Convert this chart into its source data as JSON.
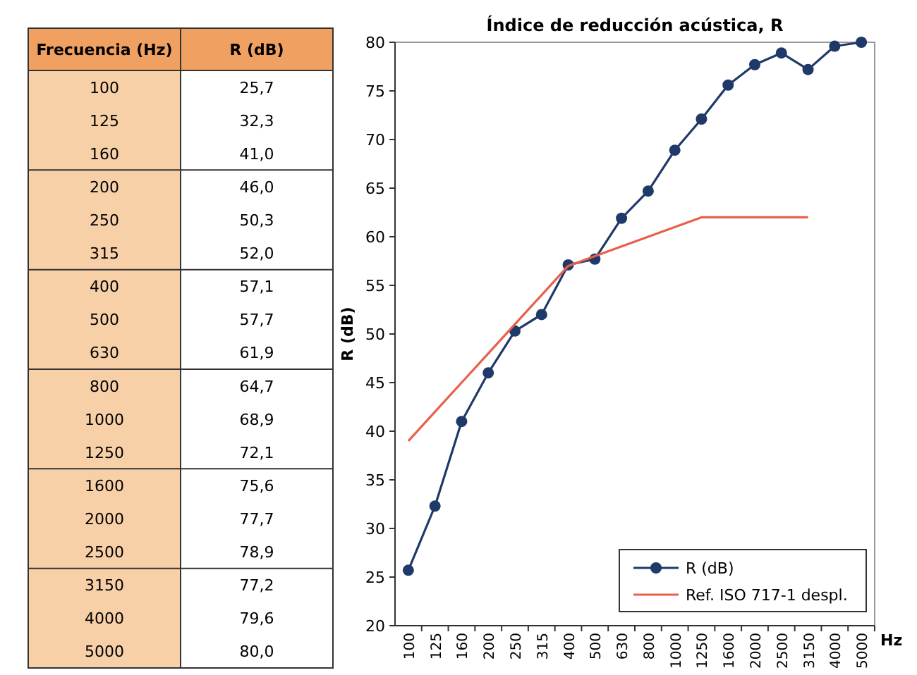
{
  "chart_data": {
    "type": "line",
    "title": "Índice de reducción acústica, R",
    "xlabel": "Hz",
    "ylabel": "R (dB)",
    "annotations": [
      "Frecuencia (Hz)",
      "R (dB)"
    ],
    "categories": [
      "100",
      "125",
      "160",
      "200",
      "250",
      "315",
      "400",
      "500",
      "630",
      "800",
      "1000",
      "1250",
      "1600",
      "2000",
      "2500",
      "3150",
      "4000",
      "5000"
    ],
    "series": [
      {
        "name": "R (dB)",
        "color": "#1f3a68",
        "marker": "circle",
        "values": [
          25.7,
          32.3,
          41.0,
          46.0,
          50.3,
          52.0,
          57.1,
          57.7,
          61.9,
          64.7,
          68.9,
          72.1,
          75.6,
          77.7,
          78.9,
          77.2,
          79.6,
          80.0
        ],
        "value_labels": [
          "25,7",
          "32,3",
          "41,0",
          "46,0",
          "50,3",
          "52,0",
          "57,1",
          "57,7",
          "61,9",
          "64,7",
          "68,9",
          "72,1",
          "75,6",
          "77,7",
          "78,9",
          "77,2",
          "79,6",
          "80,0"
        ]
      },
      {
        "name": "Ref. ISO 717-1 despl.",
        "color": "#e8604c",
        "marker": "none",
        "values": [
          39,
          42,
          45,
          48,
          51,
          54,
          57,
          58,
          59,
          60,
          61,
          62,
          62,
          62,
          62,
          62,
          null,
          null
        ]
      }
    ],
    "ylim": [
      20,
      80
    ],
    "yticks": [
      20,
      25,
      30,
      35,
      40,
      45,
      50,
      55,
      60,
      65,
      70,
      75,
      80
    ],
    "grid": false,
    "legend": "bottom right",
    "line_style": "solid"
  }
}
